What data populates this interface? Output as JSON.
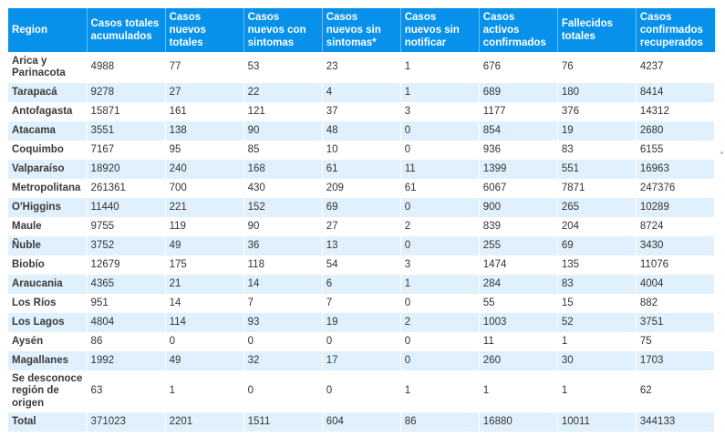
{
  "table": {
    "headers": [
      "Region",
      "Casos totales acumulados",
      "Casos nuevos totales",
      "Casos nuevos con sintomas",
      "Casos nuevos sin sintomas*",
      "Casos nuevos sin notificar",
      "Casos activos confirmados",
      "Fallecidos totales",
      "Casos confirmados recuperados"
    ],
    "rows": [
      [
        "Arica y Parinacota",
        "4988",
        "77",
        "53",
        "23",
        "1",
        "676",
        "76",
        "4237"
      ],
      [
        "Tarapacá",
        "9278",
        "27",
        "22",
        "4",
        "1",
        "689",
        "180",
        "8414"
      ],
      [
        "Antofagasta",
        "15871",
        "161",
        "121",
        "37",
        "3",
        "1177",
        "376",
        "14312"
      ],
      [
        "Atacama",
        "3551",
        "138",
        "90",
        "48",
        "0",
        "854",
        "19",
        "2680"
      ],
      [
        "Coquimbo",
        "7167",
        "95",
        "85",
        "10",
        "0",
        "936",
        "83",
        "6155"
      ],
      [
        "Valparaíso",
        "18920",
        "240",
        "168",
        "61",
        "11",
        "1399",
        "551",
        "16963"
      ],
      [
        "Metropolitana",
        "261361",
        "700",
        "430",
        "209",
        "61",
        "6067",
        "7871",
        "247376"
      ],
      [
        "O'Higgins",
        "11440",
        "221",
        "152",
        "69",
        "0",
        "900",
        "265",
        "10289"
      ],
      [
        "Maule",
        "9755",
        "119",
        "90",
        "27",
        "2",
        "839",
        "204",
        "8724"
      ],
      [
        "Ñuble",
        "3752",
        "49",
        "36",
        "13",
        "0",
        "255",
        "69",
        "3430"
      ],
      [
        "Biobío",
        "12679",
        "175",
        "118",
        "54",
        "3",
        "1474",
        "135",
        "11076"
      ],
      [
        "Araucania",
        "4365",
        "21",
        "14",
        "6",
        "1",
        "284",
        "83",
        "4004"
      ],
      [
        "Los Ríos",
        "951",
        "14",
        "7",
        "7",
        "0",
        "55",
        "15",
        "882"
      ],
      [
        "Los Lagos",
        "4804",
        "114",
        "93",
        "19",
        "2",
        "1003",
        "52",
        "3751"
      ],
      [
        "Aysén",
        "86",
        "0",
        "0",
        "0",
        "0",
        "11",
        "1",
        "75"
      ],
      [
        "Magallanes",
        "1992",
        "49",
        "32",
        "17",
        "0",
        "260",
        "30",
        "1703"
      ],
      [
        "Se desconoce región de origen",
        "63",
        "1",
        "0",
        "0",
        "1",
        "1",
        "1",
        "62"
      ],
      [
        "Total",
        "371023",
        "2201",
        "1511",
        "604",
        "86",
        "16880",
        "10011",
        "344133"
      ]
    ]
  },
  "colors": {
    "header_bg": "#0791ea",
    "stripe": "#e0f1fd"
  }
}
